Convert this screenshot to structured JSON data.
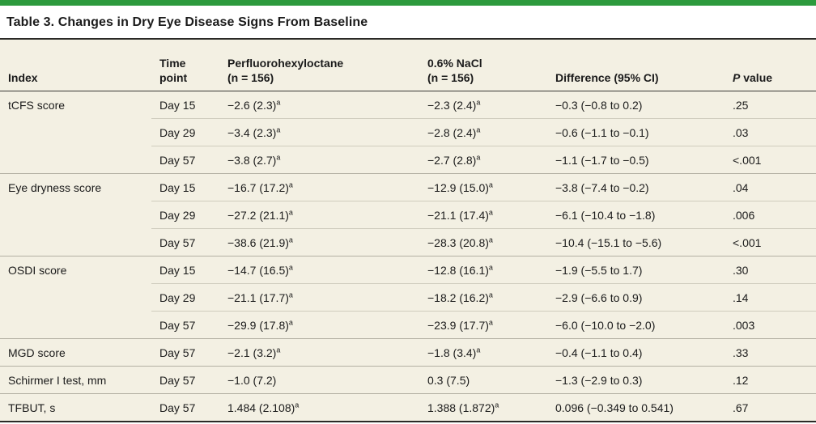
{
  "title": "Table 3. Changes in Dry Eye Disease Signs From Baseline",
  "colors": {
    "accent_green": "#2d9a3d",
    "table_background": "#f3f0e3",
    "heavy_rule": "#2b2a27",
    "row_separator": "#cfccbe",
    "group_separator": "#b3b0a3",
    "text": "#1b1b1b"
  },
  "table": {
    "columns": [
      {
        "line1": "",
        "line2": "Index"
      },
      {
        "line1": "Time",
        "line2": "point"
      },
      {
        "line1": "Perfluorohexyloctane",
        "line2": "(n = 156)"
      },
      {
        "line1": "0.6% NaCl",
        "line2": "(n = 156)"
      },
      {
        "line1": "",
        "line2": "Difference (95% CI)"
      },
      {
        "line1": "",
        "line2_italic": "P",
        "line2_rest": " value"
      }
    ],
    "rows": [
      {
        "group_start": true,
        "index": "tCFS score",
        "time": "Day 15",
        "pfh": "−2.6 (2.3)",
        "pfh_sup": "a",
        "nacl": "−2.3 (2.4)",
        "nacl_sup": "a",
        "diff": "−0.3 (−0.8 to 0.2)",
        "p": ".25"
      },
      {
        "group_start": false,
        "index": "",
        "time": "Day 29",
        "pfh": "−3.4 (2.3)",
        "pfh_sup": "a",
        "nacl": "−2.8 (2.4)",
        "nacl_sup": "a",
        "diff": "−0.6 (−1.1 to −0.1)",
        "p": ".03"
      },
      {
        "group_start": false,
        "index": "",
        "time": "Day 57",
        "pfh": "−3.8 (2.7)",
        "pfh_sup": "a",
        "nacl": "−2.7 (2.8)",
        "nacl_sup": "a",
        "diff": "−1.1 (−1.7 to −0.5)",
        "p": "<.001"
      },
      {
        "group_start": true,
        "index": "Eye dryness score",
        "time": "Day 15",
        "pfh": "−16.7 (17.2)",
        "pfh_sup": "a",
        "nacl": "−12.9 (15.0)",
        "nacl_sup": "a",
        "diff": "−3.8 (−7.4 to −0.2)",
        "p": ".04"
      },
      {
        "group_start": false,
        "index": "",
        "time": "Day 29",
        "pfh": "−27.2 (21.1)",
        "pfh_sup": "a",
        "nacl": "−21.1 (17.4)",
        "nacl_sup": "a",
        "diff": "−6.1 (−10.4 to −1.8)",
        "p": ".006"
      },
      {
        "group_start": false,
        "index": "",
        "time": "Day 57",
        "pfh": "−38.6 (21.9)",
        "pfh_sup": "a",
        "nacl": "−28.3 (20.8)",
        "nacl_sup": "a",
        "diff": "−10.4 (−15.1 to −5.6)",
        "p": "<.001"
      },
      {
        "group_start": true,
        "index": "OSDI score",
        "time": "Day 15",
        "pfh": "−14.7 (16.5)",
        "pfh_sup": "a",
        "nacl": "−12.8 (16.1)",
        "nacl_sup": "a",
        "diff": "−1.9 (−5.5 to 1.7)",
        "p": ".30"
      },
      {
        "group_start": false,
        "index": "",
        "time": "Day 29",
        "pfh": "−21.1 (17.7)",
        "pfh_sup": "a",
        "nacl": "−18.2 (16.2)",
        "nacl_sup": "a",
        "diff": "−2.9 (−6.6 to 0.9)",
        "p": ".14"
      },
      {
        "group_start": false,
        "index": "",
        "time": "Day 57",
        "pfh": "−29.9 (17.8)",
        "pfh_sup": "a",
        "nacl": "−23.9 (17.7)",
        "nacl_sup": "a",
        "diff": "−6.0 (−10.0 to −2.0)",
        "p": ".003"
      },
      {
        "group_start": true,
        "index": "MGD score",
        "time": "Day 57",
        "pfh": "−2.1 (3.2)",
        "pfh_sup": "a",
        "nacl": "−1.8 (3.4)",
        "nacl_sup": "a",
        "diff": "−0.4 (−1.1 to 0.4)",
        "p": ".33"
      },
      {
        "group_start": true,
        "index": "Schirmer I test, mm",
        "time": "Day 57",
        "pfh": "−1.0 (7.2)",
        "pfh_sup": "",
        "nacl": "0.3 (7.5)",
        "nacl_sup": "",
        "diff": "−1.3 (−2.9 to 0.3)",
        "p": ".12"
      },
      {
        "group_start": true,
        "index": "TFBUT, s",
        "time": "Day 57",
        "pfh": "1.484 (2.108)",
        "pfh_sup": "a",
        "nacl": "1.388 (1.872)",
        "nacl_sup": "a",
        "diff": "0.096 (−0.349 to 0.541)",
        "p": ".67"
      }
    ]
  }
}
